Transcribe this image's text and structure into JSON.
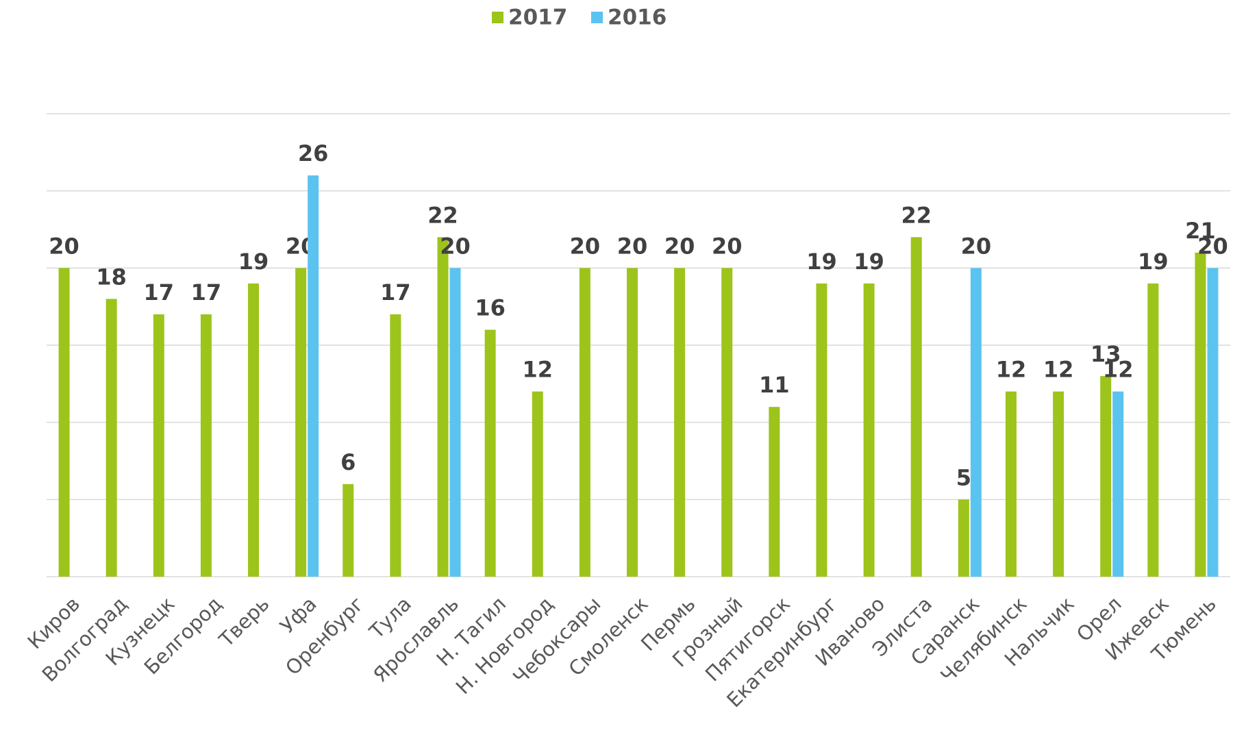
{
  "chart_data": {
    "type": "bar",
    "categories": [
      "Киров",
      "Волгоград",
      "Кузнецк",
      "Белгород",
      "Тверь",
      "Уфа",
      "Оренбург",
      "Тула",
      "Ярославль",
      "Н. Тагил",
      "Н. Новгород",
      "Чебоксары",
      "Смоленск",
      "Пермь",
      "Грозный",
      "Пятигорск",
      "Екатеринбург",
      "Иваново",
      "Элиста",
      "Саранск",
      "Челябинск",
      "Нальчик",
      "Орел",
      "Ижевск",
      "Тюмень"
    ],
    "series": [
      {
        "name": "2017",
        "color": "#9dc41a",
        "values": [
          20,
          18,
          17,
          17,
          19,
          20,
          6,
          17,
          22,
          16,
          12,
          20,
          20,
          20,
          20,
          11,
          19,
          19,
          22,
          5,
          12,
          12,
          13,
          19,
          21
        ]
      },
      {
        "name": "2016",
        "color": "#5bc3f0",
        "values": [
          null,
          null,
          null,
          null,
          null,
          26,
          null,
          null,
          20,
          null,
          null,
          null,
          null,
          null,
          null,
          null,
          null,
          null,
          null,
          20,
          null,
          null,
          12,
          null,
          20
        ]
      }
    ],
    "ylim": [
      0,
      30
    ],
    "yticks": [
      0,
      5,
      10,
      15,
      20,
      25,
      30
    ],
    "grid": true,
    "legend": "top"
  }
}
